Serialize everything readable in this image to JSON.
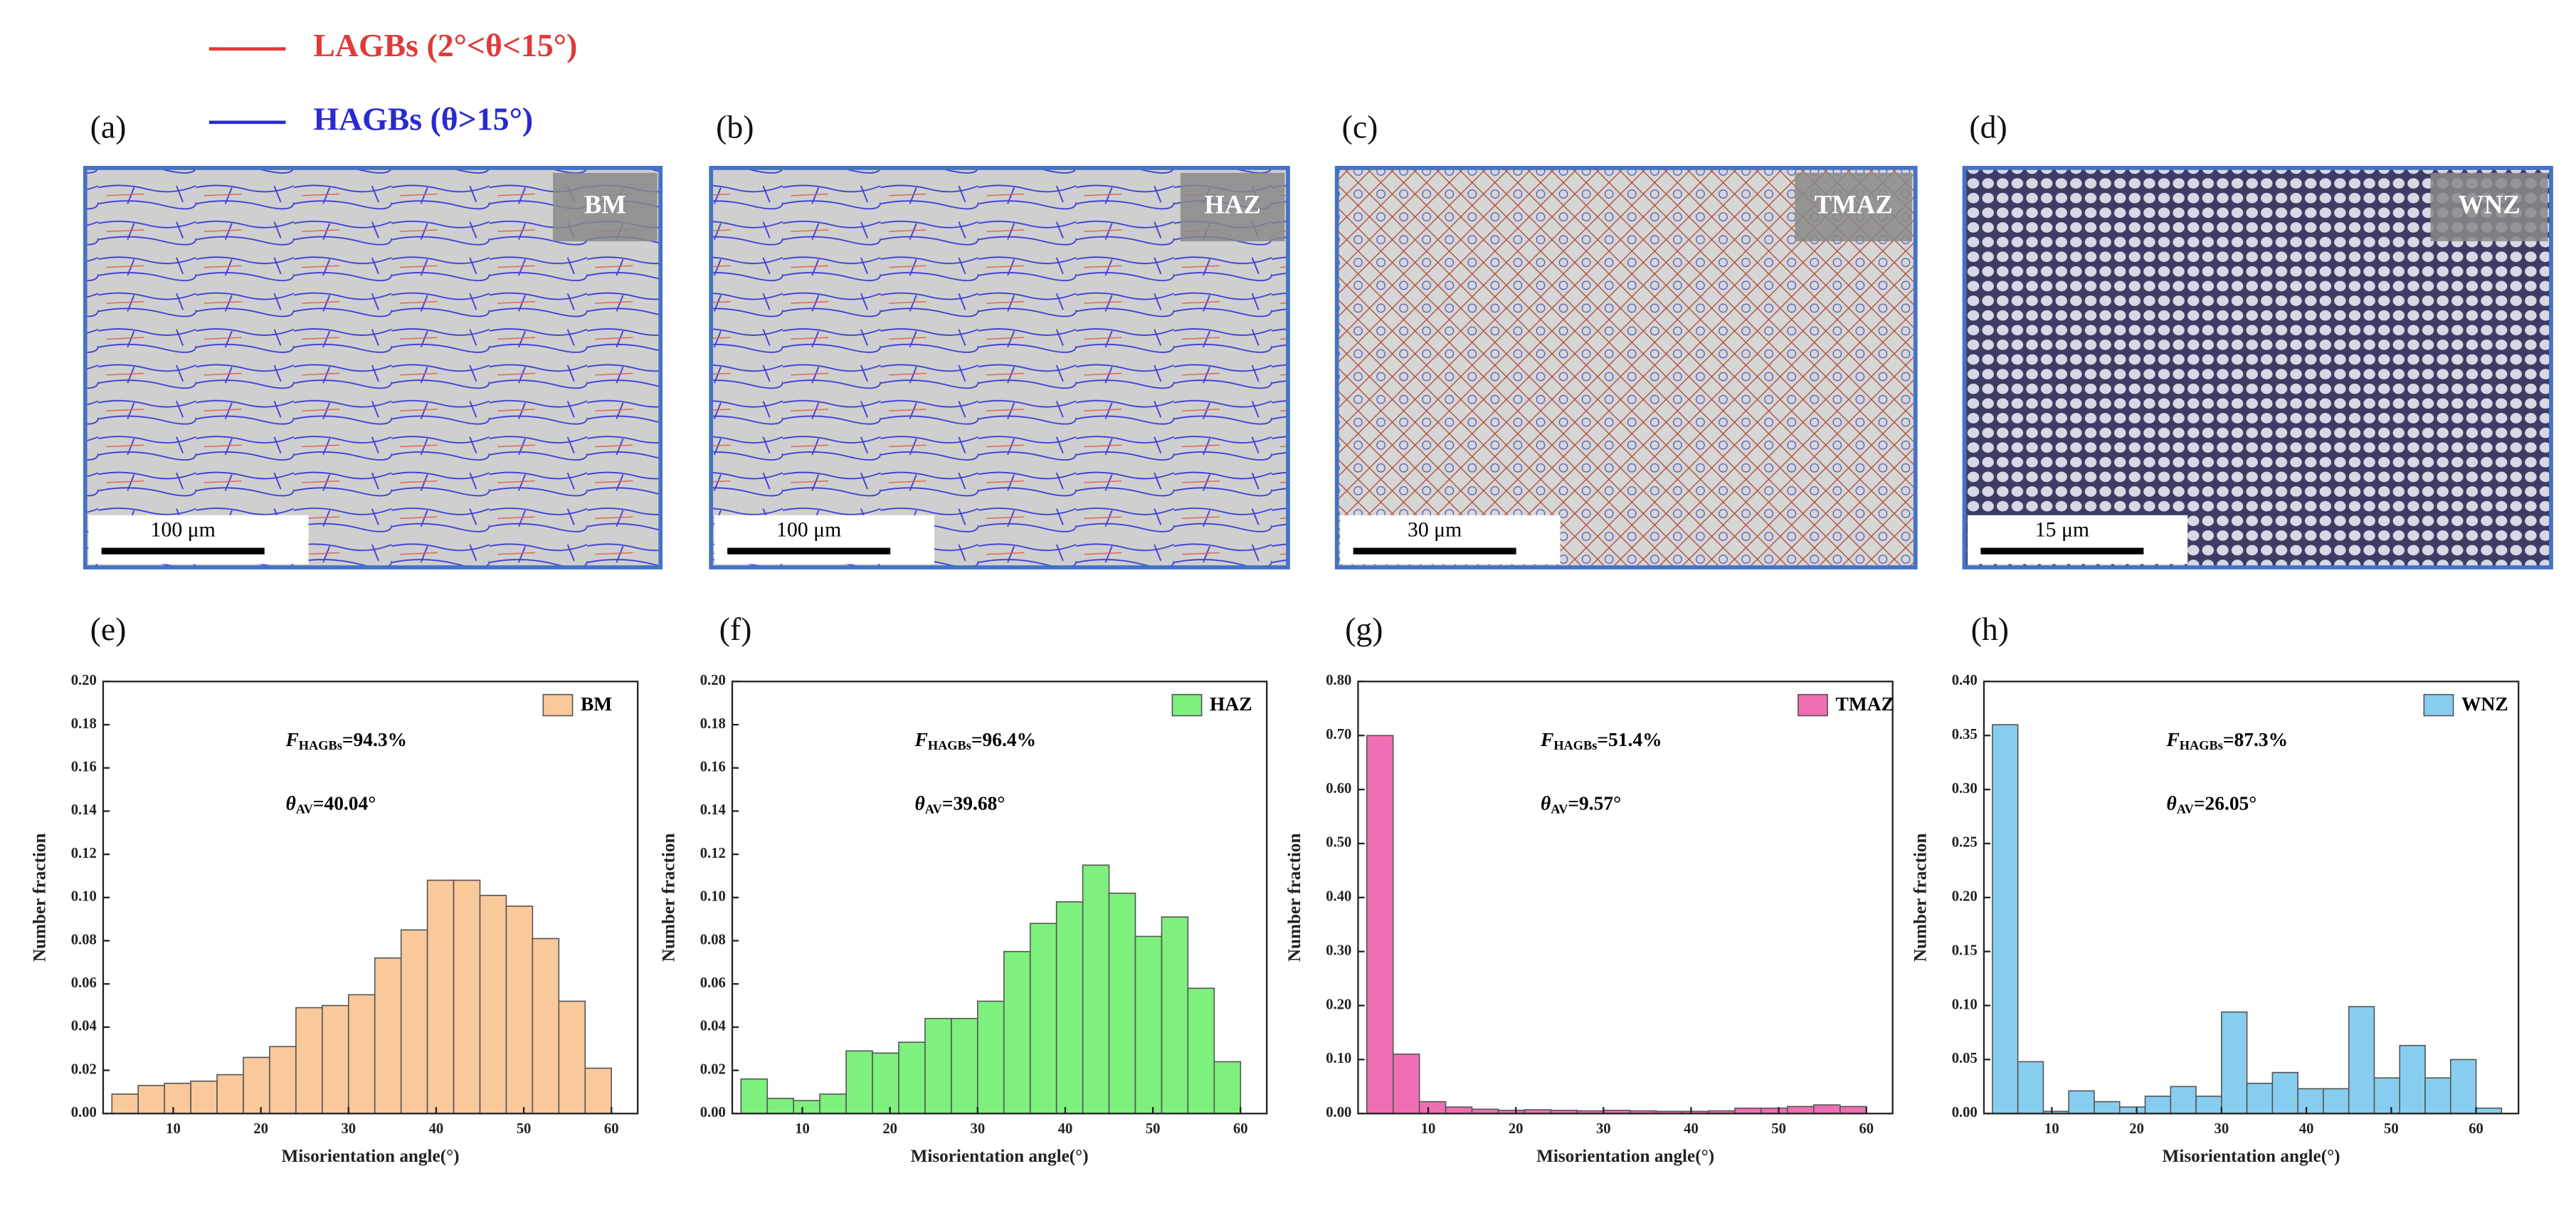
{
  "legend": [
    {
      "name": "LAGBs (2°<θ<15°)",
      "color": "#e03a3a"
    },
    {
      "name": "HAGBs (θ>15°)",
      "color": "#2a2ad0"
    }
  ],
  "micrographs": [
    {
      "panel": "(a)",
      "zone": "BM",
      "scale_bar": "100 μm"
    },
    {
      "panel": "(b)",
      "zone": "HAZ",
      "scale_bar": "100 μm"
    },
    {
      "panel": "(c)",
      "zone": "TMAZ",
      "scale_bar": "30 μm"
    },
    {
      "panel": "(d)",
      "zone": "WNZ",
      "scale_bar": "15 μm"
    }
  ],
  "chart_data": [
    {
      "type": "histogram",
      "panel": "(e)",
      "x_label": "Misorientation angle(°)",
      "y_label": "Number fraction",
      "annotations": [
        {
          "symbol": "F",
          "subscript": "HAGBs",
          "text": "=94.3%"
        },
        {
          "symbol": "θ",
          "subscript": "AV",
          "text": "=40.04°"
        }
      ],
      "series": [
        {
          "name": "BM",
          "color": "#f9c89b"
        }
      ],
      "bins": [
        3,
        6,
        9,
        12,
        15,
        18,
        21,
        24,
        27,
        30,
        33,
        36,
        39,
        42,
        45,
        48,
        51,
        54,
        57,
        60
      ],
      "values": [
        0.009,
        0.013,
        0.014,
        0.015,
        0.018,
        0.026,
        0.031,
        0.049,
        0.05,
        0.055,
        0.072,
        0.085,
        0.108,
        0.108,
        0.101,
        0.096,
        0.081,
        0.052,
        0.021
      ],
      "xlim": [
        2,
        63
      ],
      "xticks": [
        10,
        20,
        30,
        40,
        50,
        60
      ],
      "ylim": [
        0,
        0.2
      ],
      "yticks": [
        {
          "value": 0,
          "label": "0.00"
        },
        {
          "value": 0.02,
          "label": "0.02"
        },
        {
          "value": 0.04,
          "label": "0.04"
        },
        {
          "value": 0.06,
          "label": "0.06"
        },
        {
          "value": 0.08,
          "label": "0.08"
        },
        {
          "value": 0.1,
          "label": "0.10"
        },
        {
          "value": 0.12,
          "label": "0.12"
        },
        {
          "value": 0.14,
          "label": "0.14"
        },
        {
          "value": 0.16,
          "label": "0.16"
        },
        {
          "value": 0.18,
          "label": "0.18"
        },
        {
          "value": 0.2,
          "label": "0.20"
        }
      ]
    },
    {
      "type": "histogram",
      "panel": "(f)",
      "x_label": "Misorientation angle(°)",
      "y_label": "Number fraction",
      "annotations": [
        {
          "symbol": "F",
          "subscript": "HAGBs",
          "text": "=96.4%"
        },
        {
          "symbol": "θ",
          "subscript": "AV",
          "text": "=39.68°"
        }
      ],
      "series": [
        {
          "name": "HAZ",
          "color": "#7ef07e"
        }
      ],
      "bins": [
        3,
        6,
        9,
        12,
        15,
        18,
        21,
        24,
        27,
        30,
        33,
        36,
        39,
        42,
        45,
        48,
        51,
        54,
        57,
        60
      ],
      "values": [
        0.016,
        0.007,
        0.006,
        0.009,
        0.029,
        0.028,
        0.033,
        0.044,
        0.044,
        0.052,
        0.075,
        0.088,
        0.098,
        0.115,
        0.102,
        0.082,
        0.091,
        0.058,
        0.024
      ],
      "xlim": [
        2,
        63
      ],
      "xticks": [
        10,
        20,
        30,
        40,
        50,
        60
      ],
      "ylim": [
        0,
        0.2
      ],
      "yticks": [
        {
          "value": 0,
          "label": "0.00"
        },
        {
          "value": 0.02,
          "label": "0.02"
        },
        {
          "value": 0.04,
          "label": "0.04"
        },
        {
          "value": 0.06,
          "label": "0.06"
        },
        {
          "value": 0.08,
          "label": "0.08"
        },
        {
          "value": 0.1,
          "label": "0.10"
        },
        {
          "value": 0.12,
          "label": "0.12"
        },
        {
          "value": 0.14,
          "label": "0.14"
        },
        {
          "value": 0.16,
          "label": "0.16"
        },
        {
          "value": 0.18,
          "label": "0.18"
        },
        {
          "value": 0.2,
          "label": "0.20"
        }
      ]
    },
    {
      "type": "histogram",
      "panel": "(g)",
      "x_label": "Misorientation angle(°)",
      "y_label": "Number fraction",
      "annotations": [
        {
          "symbol": "F",
          "subscript": "HAGBs",
          "text": "=51.4%"
        },
        {
          "symbol": "θ",
          "subscript": "AV",
          "text": "=9.57°"
        }
      ],
      "series": [
        {
          "name": "TMAZ",
          "color": "#f06eb4"
        }
      ],
      "bins": [
        3,
        6,
        9,
        12,
        15,
        18,
        21,
        24,
        27,
        30,
        33,
        36,
        39,
        42,
        45,
        48,
        51,
        54,
        57,
        60
      ],
      "values": [
        0.7,
        0.11,
        0.022,
        0.012,
        0.008,
        0.006,
        0.007,
        0.006,
        0.005,
        0.006,
        0.005,
        0.004,
        0.004,
        0.005,
        0.01,
        0.01,
        0.013,
        0.016,
        0.013
      ],
      "xlim": [
        2,
        63
      ],
      "xticks": [
        10,
        20,
        30,
        40,
        50,
        60
      ],
      "ylim": [
        0,
        0.8
      ],
      "yticks": [
        {
          "value": 0,
          "label": "0.00"
        },
        {
          "value": 0.1,
          "label": "0.10"
        },
        {
          "value": 0.2,
          "label": "0.20"
        },
        {
          "value": 0.3,
          "label": "0.30"
        },
        {
          "value": 0.4,
          "label": "0.40"
        },
        {
          "value": 0.5,
          "label": "0.50"
        },
        {
          "value": 0.6,
          "label": "0.60"
        },
        {
          "value": 0.7,
          "label": "0.70"
        },
        {
          "value": 0.8,
          "label": "0.80"
        }
      ]
    },
    {
      "type": "histogram",
      "panel": "(h)",
      "x_label": "Misorientation angle(°)",
      "y_label": "Number fraction",
      "annotations": [
        {
          "symbol": "F",
          "subscript": "HAGBs",
          "text": "=87.3%"
        },
        {
          "symbol": "θ",
          "subscript": "AV",
          "text": "=26.05°"
        }
      ],
      "series": [
        {
          "name": "WNZ",
          "color": "#87cdf0"
        }
      ],
      "bins": [
        3,
        6,
        9,
        12,
        15,
        18,
        21,
        24,
        27,
        30,
        33,
        36,
        39,
        42,
        45,
        48,
        51,
        54,
        57,
        60,
        63
      ],
      "values": [
        0.36,
        0.048,
        0.002,
        0.021,
        0.011,
        0.006,
        0.016,
        0.025,
        0.016,
        0.094,
        0.028,
        0.038,
        0.023,
        0.023,
        0.099,
        0.033,
        0.063,
        0.033,
        0.05,
        0.005
      ],
      "xlim": [
        2,
        65
      ],
      "xticks": [
        10,
        20,
        30,
        40,
        50,
        60
      ],
      "ylim": [
        0,
        0.4
      ],
      "yticks": [
        {
          "value": 0,
          "label": "0.00"
        },
        {
          "value": 0.05,
          "label": "0.05"
        },
        {
          "value": 0.1,
          "label": "0.10"
        },
        {
          "value": 0.15,
          "label": "0.15"
        },
        {
          "value": 0.2,
          "label": "0.20"
        },
        {
          "value": 0.25,
          "label": "0.25"
        },
        {
          "value": 0.3,
          "label": "0.30"
        },
        {
          "value": 0.35,
          "label": "0.35"
        },
        {
          "value": 0.4,
          "label": "0.40"
        }
      ]
    }
  ]
}
